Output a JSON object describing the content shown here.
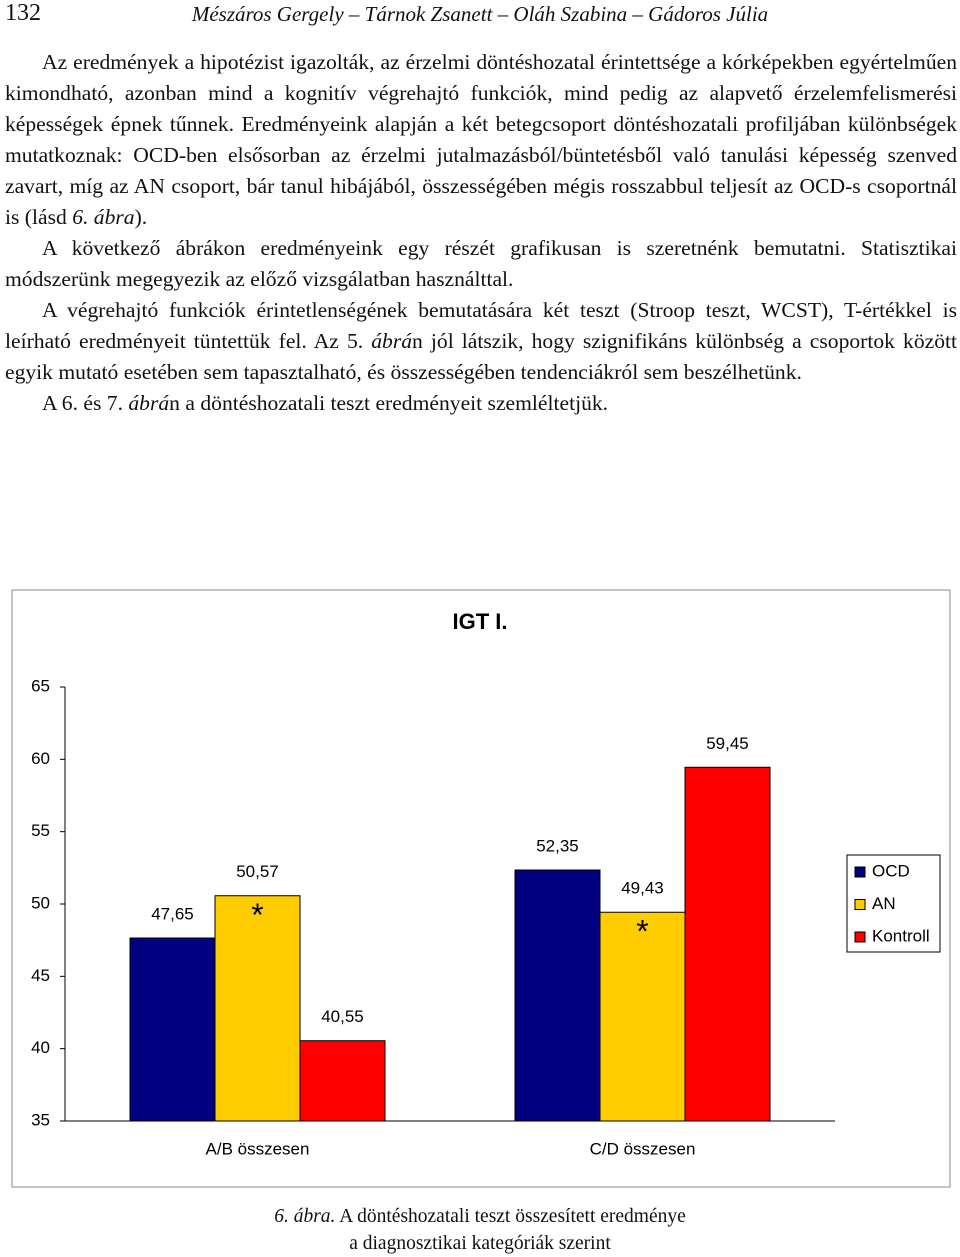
{
  "header": {
    "page_number": "132",
    "running_title": "Mészáros Gergely – Tárnok Zsanett – Oláh Szabina – Gádoros Júlia"
  },
  "paragraphs": [
    [
      {
        "text": "Az eredmények a hipotézist igazolták, az érzelmi döntéshozatal érintettsége a kórképekben egyértelműen kimondható, azonban mind a kognitív végrehajtó funkciók, mind pedig az alapvető érzelemfelismerési képességek épnek tűnnek. Eredményeink alapján a két betegcsoport döntéshozatali profiljában különbségek mutatkoznak: OCD-ben elsősorban az érzelmi jutalmazásból/büntetésből való tanulási képesség szenved zavart, míg az AN csoport, bár tanul hibájából, összességében mégis rosszabbul teljesít az OCD-s csoportnál is (lásd "
      },
      {
        "text": "6. ábra",
        "italic": true
      },
      {
        "text": ")."
      }
    ],
    [
      {
        "text": "A következő ábrákon eredményeink egy részét grafikusan is szeretnénk bemutatni. Statisztikai módszerünk megegyezik az előző vizsgálatban használttal."
      }
    ],
    [
      {
        "text": "A végrehajtó funkciók érintetlenségének bemutatására két teszt (Stroop teszt, WCST), T-értékkel is leírható eredményeit tüntettük fel. Az 5. "
      },
      {
        "text": "ábrá",
        "italic": true
      },
      {
        "text": "n jól látszik, hogy szignifikáns különbség a csoportok között egyik mutató esetében sem tapasztalható, és összességében tendenciákról sem beszélhetünk."
      }
    ],
    [
      {
        "text": "A 6. és 7. "
      },
      {
        "text": "ábrá",
        "italic": true
      },
      {
        "text": "n a döntéshozatali teszt eredményeit szemléltetjük."
      }
    ]
  ],
  "chart_data": {
    "type": "bar",
    "title": "IGT I.",
    "categories": [
      "A/B összesen",
      "C/D összesen"
    ],
    "series": [
      {
        "name": "OCD",
        "color": "#000080",
        "values": [
          47.65,
          52.35
        ],
        "value_labels": [
          "47,65",
          "52,35"
        ]
      },
      {
        "name": "AN",
        "color": "#FFCC00",
        "values": [
          50.57,
          49.43
        ],
        "value_labels": [
          "50,57",
          "49,43"
        ],
        "annotations": [
          "*",
          "*"
        ]
      },
      {
        "name": "Kontroll",
        "color": "#FF0000",
        "values": [
          40.55,
          59.45
        ],
        "value_labels": [
          "40,55",
          "59,45"
        ]
      }
    ],
    "ylim": [
      35,
      65
    ],
    "yticks": [
      35,
      40,
      45,
      50,
      55,
      60,
      65
    ],
    "grid": false,
    "legend": "right"
  },
  "caption": {
    "label": "6. ábra.",
    "lines": [
      "A döntéshozatali teszt összesített eredménye",
      "a diagnosztikai kategóriák szerint"
    ]
  }
}
